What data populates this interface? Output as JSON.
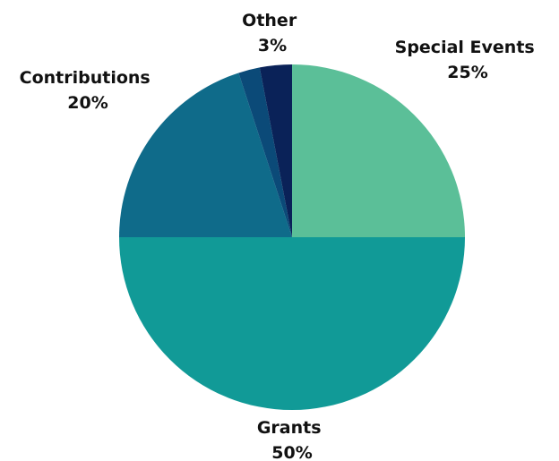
{
  "chart_data": {
    "type": "pie",
    "title": "",
    "start_angle_deg": 0,
    "direction": "clockwise",
    "slices": [
      {
        "category": "Special Events",
        "value": 25,
        "label": "25%",
        "color": "#5bbf98"
      },
      {
        "category": "Grants",
        "value": 50,
        "label": "50%",
        "color": "#119a97"
      },
      {
        "category": "Contributions",
        "value": 20,
        "label": "20%",
        "color": "#0f6b8a"
      },
      {
        "category": "",
        "value": 2,
        "label": "",
        "color": "#0b4a78"
      },
      {
        "category": "Other",
        "value": 3,
        "label": "3%",
        "color": "#0a2258"
      }
    ],
    "legend": "none"
  }
}
